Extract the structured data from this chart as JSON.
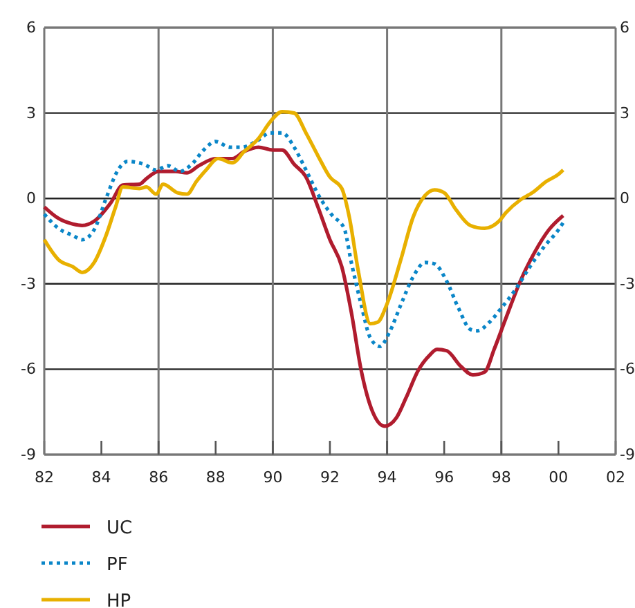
{
  "chart_data": {
    "type": "line",
    "x": [
      "1982-01",
      "1982-07",
      "1983-01",
      "1983-05",
      "1983-10",
      "1984-05",
      "1984-10",
      "1985-05",
      "1985-08",
      "1986-01",
      "1986-08",
      "1987-01",
      "1987-06",
      "1988-01",
      "1988-08",
      "1989-01",
      "1989-07",
      "1990-01",
      "1990-05",
      "1990-10",
      "1991-03",
      "1991-08",
      "1992-01",
      "1992-06",
      "1992-10",
      "1993-02",
      "1993-07",
      "1993-12",
      "1994-05",
      "1994-09",
      "1995-02",
      "1995-07",
      "1995-10",
      "1996-02",
      "1996-08",
      "1997-01",
      "1997-06",
      "1997-10",
      "1998-03",
      "1998-09",
      "1999-03",
      "1999-09",
      "2000-03"
    ],
    "series": [
      {
        "name": "UC",
        "color": "#b01c2e",
        "line_style": "solid",
        "values": [
          -0.3,
          -0.7,
          -0.9,
          -0.95,
          -0.8,
          -0.15,
          0.47,
          0.5,
          0.7,
          0.95,
          0.95,
          0.9,
          1.15,
          1.4,
          1.4,
          1.65,
          1.8,
          1.7,
          1.7,
          1.2,
          0.75,
          -0.3,
          -1.45,
          -2.4,
          -4.0,
          -6.0,
          -7.5,
          -8.0,
          -7.7,
          -7.0,
          -6.05,
          -5.5,
          -5.3,
          -5.35,
          -5.9,
          -6.2,
          -6.1,
          -5.3,
          -4.2,
          -2.9,
          -1.9,
          -1.1,
          -0.6
        ]
      },
      {
        "name": "PF",
        "color": "#0a86c8",
        "line_style": "dotted",
        "x": [
          "1982-01",
          "1982-07",
          "1983-01",
          "1983-05",
          "1983-10",
          "1984-03",
          "1984-08",
          "1984-12",
          "1985-07",
          "1985-12",
          "1986-05",
          "1986-10",
          "1987-03",
          "1987-08",
          "1988-01",
          "1988-07",
          "1988-12",
          "1989-06",
          "1989-12",
          "1990-05",
          "1990-10",
          "1991-03",
          "1991-09",
          "1992-02",
          "1992-07",
          "1992-10",
          "1993-02",
          "1993-06",
          "1993-10",
          "1994-02",
          "1994-07",
          "1994-12",
          "1995-05",
          "1995-09",
          "1996-02",
          "1996-07",
          "1996-12",
          "1997-03",
          "1997-08",
          "1998-01",
          "1998-07",
          "1999-01",
          "1999-07",
          "2000-01",
          "2000-03"
        ],
        "values": [
          -0.55,
          -1.05,
          -1.3,
          -1.45,
          -1.1,
          0,
          1.0,
          1.3,
          1.2,
          1.0,
          1.15,
          0.95,
          1.2,
          1.7,
          2.0,
          1.8,
          1.8,
          2.0,
          2.3,
          2.3,
          1.8,
          1.0,
          0,
          -0.6,
          -1.05,
          -2.25,
          -3.7,
          -4.9,
          -5.2,
          -4.7,
          -3.7,
          -2.75,
          -2.25,
          -2.3,
          -2.9,
          -3.85,
          -4.6,
          -4.65,
          -4.35,
          -3.85,
          -3.2,
          -2.4,
          -1.7,
          -1.1,
          -0.85
        ]
      },
      {
        "name": "HP",
        "color": "#e8b000",
        "line_style": "solid",
        "x": [
          "1982-01",
          "1982-07",
          "1983-01",
          "1983-05",
          "1983-10",
          "1984-03",
          "1984-07",
          "1984-10",
          "1985-05",
          "1985-08",
          "1985-12",
          "1986-03",
          "1986-09",
          "1987-01",
          "1987-05",
          "1987-09",
          "1988-02",
          "1988-08",
          "1989-01",
          "1989-07",
          "1989-12",
          "1990-05",
          "1990-10",
          "1991-03",
          "1991-08",
          "1992-01",
          "1992-06",
          "1992-09",
          "1993-01",
          "1993-06",
          "1993-09",
          "1994-01",
          "1994-07",
          "1994-12",
          "1995-05",
          "1995-09",
          "1996-01",
          "1996-06",
          "1996-12",
          "1997-06",
          "1997-12",
          "1998-03",
          "1998-09",
          "1999-02",
          "1999-08",
          "2000-01",
          "2000-03"
        ],
        "values": [
          -1.45,
          -2.15,
          -2.4,
          -2.6,
          -2.25,
          -1.3,
          -0.3,
          0.4,
          0.35,
          0.4,
          0.15,
          0.5,
          0.2,
          0.15,
          0.6,
          1.0,
          1.4,
          1.25,
          1.65,
          2.1,
          2.7,
          3.05,
          3.0,
          2.3,
          1.5,
          0.75,
          0.35,
          -0.6,
          -2.6,
          -4.4,
          -4.35,
          -3.7,
          -2.1,
          -0.65,
          0.1,
          0.3,
          0.2,
          -0.4,
          -0.95,
          -1.05,
          -0.8,
          -0.5,
          -0.05,
          0.2,
          0.6,
          0.85,
          1.0
        ]
      }
    ],
    "xlim": [
      "1982",
      "2002"
    ],
    "xticks": [
      {
        "value": "1982",
        "label": "82"
      },
      {
        "value": "1984",
        "label": "84"
      },
      {
        "value": "1986",
        "label": "86"
      },
      {
        "value": "1988",
        "label": "88"
      },
      {
        "value": "1990",
        "label": "90"
      },
      {
        "value": "1992",
        "label": "92"
      },
      {
        "value": "1994",
        "label": "94"
      },
      {
        "value": "1996",
        "label": "96"
      },
      {
        "value": "1998",
        "label": "98"
      },
      {
        "value": "2000",
        "label": "00"
      },
      {
        "value": "2002",
        "label": "02"
      }
    ],
    "ylim": [
      -9,
      6
    ],
    "yticks": [
      -9,
      -6,
      -3,
      0,
      3,
      6
    ],
    "y2lim": [
      -9,
      6
    ],
    "y2ticks": [
      -9,
      -6,
      -3,
      0,
      3,
      6
    ],
    "grid": "y",
    "ref_lines": [
      {
        "axis": "x",
        "value": "1986",
        "color": "#777777"
      },
      {
        "axis": "x",
        "value": "1990",
        "color": "#777777"
      },
      {
        "axis": "x",
        "value": "1994",
        "color": "#777777"
      },
      {
        "axis": "x",
        "value": "1998",
        "color": "#777777"
      }
    ],
    "legend": "bottom",
    "marker": "none"
  }
}
